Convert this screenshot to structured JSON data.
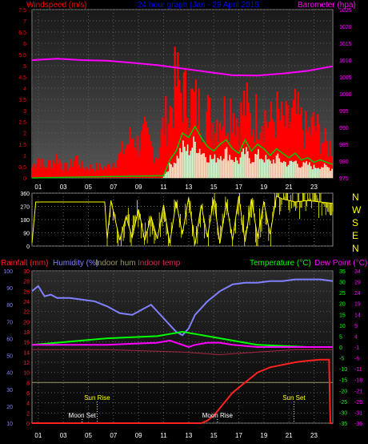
{
  "colors": {
    "background": "#000000",
    "grid": "#5a5a5a",
    "wind": "#ff0000",
    "windavg": "#00cc00",
    "windlight": "#d8ffd8",
    "baro": "#ff00ff",
    "dir": "#ffff00",
    "rain": "#ff2020",
    "hum": "#8080ff",
    "inhum": "#999966",
    "intemp": "#aa2244",
    "temp": "#00ff00",
    "dew": "#ff00ff",
    "title": "#0000ff",
    "sun": "#ffff00",
    "moon": "#ff8080",
    "white": "#ffffff"
  },
  "header": {
    "windspeed_label": "Windspeed (m/s)",
    "title": "24 hour graph (Jan - 29 April 2015",
    "barometer_label": "Barometer (hpa)"
  },
  "bottom_header": {
    "rainfall_label": "Rainfall (mm)",
    "humidity_label": "Humidity (%)",
    "indoor_hum_label": "Indoor hum",
    "indoor_temp_label": "Indoor temp",
    "temperature_label": "Temperature (°C)",
    "dewpoint_label": "Dew Point (°C)"
  },
  "compass": [
    "N",
    "W",
    "S",
    "E",
    "N"
  ],
  "time_labels": [
    "01",
    "03",
    "05",
    "07",
    "09",
    "11",
    "13",
    "15",
    "17",
    "19",
    "21",
    "23"
  ],
  "annotations": [
    {
      "text": "Sun Rise",
      "hour": 5.2,
      "color_key": "sun",
      "level": 1
    },
    {
      "text": "Moon Set",
      "hour": 4.0,
      "color_key": "white",
      "level": 2
    },
    {
      "text": "Moon Rise",
      "hour": 14.8,
      "color_key": "white",
      "level": 2
    },
    {
      "text": "Sun Set",
      "hour": 20.9,
      "color_key": "sun",
      "level": 1
    }
  ],
  "chart_data": [
    {
      "type": "bar",
      "panel": "wind",
      "xlim": [
        0,
        24
      ],
      "y_left": {
        "label": "Windspeed (m/s)",
        "ylim": [
          0,
          7.5
        ],
        "ticks": [
          0,
          0.5,
          1,
          1.5,
          2,
          2.5,
          3,
          3.5,
          4,
          4.5,
          5,
          5.5,
          6,
          6.5,
          7,
          7.5
        ]
      },
      "y_right": {
        "label": "Barometer (hpa)",
        "ylim": [
          975,
          1025
        ],
        "ticks": [
          975,
          980,
          985,
          990,
          995,
          1000,
          1005,
          1010,
          1015,
          1020,
          1025
        ]
      },
      "gust_points": [
        [
          0,
          0.5
        ],
        [
          0.5,
          1.0
        ],
        [
          1,
          0.5
        ],
        [
          2,
          1.0
        ],
        [
          2.5,
          0.5
        ],
        [
          3,
          0.5
        ],
        [
          3.5,
          1.0
        ],
        [
          4,
          0.5
        ],
        [
          5,
          0.5
        ],
        [
          6,
          0.5
        ],
        [
          7,
          1.0
        ],
        [
          7.5,
          1.5
        ],
        [
          8,
          2.0
        ],
        [
          8.5,
          1.5
        ],
        [
          9,
          2.0
        ],
        [
          9.5,
          1.5
        ],
        [
          10,
          1.0
        ],
        [
          10.5,
          2.5
        ],
        [
          11,
          3.0
        ],
        [
          11.5,
          4.5
        ],
        [
          12,
          4.0
        ],
        [
          12.5,
          3.5
        ],
        [
          13,
          3.5
        ],
        [
          13.5,
          3.0
        ],
        [
          14,
          3.0
        ],
        [
          14.5,
          2.5
        ],
        [
          15,
          3.0
        ],
        [
          15.5,
          3.0
        ],
        [
          16,
          3.5
        ],
        [
          16.5,
          2.5
        ],
        [
          17,
          3.5
        ],
        [
          17.5,
          2.5
        ],
        [
          18,
          3.0
        ],
        [
          18.5,
          3.0
        ],
        [
          19,
          2.5
        ],
        [
          19.5,
          3.0
        ],
        [
          20,
          2.5
        ],
        [
          20.5,
          2.5
        ],
        [
          21,
          3.0
        ],
        [
          21.5,
          2.5
        ],
        [
          22,
          2.0
        ],
        [
          22.5,
          2.5
        ],
        [
          23,
          2.0
        ],
        [
          23.5,
          1.5
        ],
        [
          24,
          1.5
        ]
      ],
      "avg_points": [
        [
          0,
          0
        ],
        [
          10.5,
          0.1
        ],
        [
          11,
          0.8
        ],
        [
          11.5,
          1.2
        ],
        [
          12,
          2.0
        ],
        [
          12.5,
          1.8
        ],
        [
          13,
          2.3
        ],
        [
          13.5,
          1.8
        ],
        [
          14,
          1.4
        ],
        [
          14.5,
          1.2
        ],
        [
          15,
          1.5
        ],
        [
          15.5,
          1.7
        ],
        [
          16,
          1.3
        ],
        [
          16.5,
          1.1
        ],
        [
          17,
          1.7
        ],
        [
          17.5,
          1.2
        ],
        [
          18,
          1.5
        ],
        [
          18.5,
          1.3
        ],
        [
          19,
          1.0
        ],
        [
          19.5,
          1.3
        ],
        [
          20,
          1.1
        ],
        [
          20.5,
          0.9
        ],
        [
          21,
          1.1
        ],
        [
          21.5,
          0.8
        ],
        [
          22,
          0.9
        ],
        [
          22.5,
          0.7
        ],
        [
          23,
          0.8
        ],
        [
          24,
          0.6
        ]
      ],
      "baro_points": [
        [
          0,
          1010
        ],
        [
          2,
          1010.4
        ],
        [
          4,
          1010
        ],
        [
          6,
          1009.8
        ],
        [
          8,
          1009.2
        ],
        [
          10,
          1008.5
        ],
        [
          12,
          1007.5
        ],
        [
          14,
          1006.5
        ],
        [
          16,
          1005.5
        ],
        [
          18,
          1005.4
        ],
        [
          20,
          1006.0
        ],
        [
          22,
          1006.8
        ],
        [
          24,
          1008.2
        ]
      ]
    },
    {
      "type": "line",
      "panel": "wind_direction",
      "xlim": [
        0,
        24
      ],
      "ylim": [
        0,
        360
      ],
      "ticks": [
        0,
        90,
        180,
        270,
        360
      ],
      "points": [
        [
          0,
          20
        ],
        [
          0.3,
          300
        ],
        [
          3,
          300
        ],
        [
          5.8,
          300
        ],
        [
          6.0,
          50
        ],
        [
          6.3,
          310
        ],
        [
          7,
          40
        ],
        [
          7.5,
          200
        ],
        [
          8,
          60
        ],
        [
          8.5,
          250
        ],
        [
          9,
          40
        ],
        [
          9.5,
          200
        ],
        [
          10,
          50
        ],
        [
          10.5,
          280
        ],
        [
          11,
          20
        ],
        [
          11.5,
          300
        ],
        [
          12,
          80
        ],
        [
          12.5,
          330
        ],
        [
          13,
          10
        ],
        [
          13.5,
          280
        ],
        [
          14,
          60
        ],
        [
          14.5,
          320
        ],
        [
          15,
          20
        ],
        [
          15.5,
          300
        ],
        [
          16,
          40
        ],
        [
          16.5,
          340
        ],
        [
          17,
          30
        ],
        [
          17.5,
          320
        ],
        [
          18,
          60
        ],
        [
          18.5,
          300
        ],
        [
          19,
          80
        ],
        [
          19.5,
          340
        ],
        [
          20,
          320
        ],
        [
          21,
          300
        ],
        [
          22,
          310
        ],
        [
          23,
          300
        ],
        [
          24,
          290
        ]
      ]
    },
    {
      "type": "line",
      "panel": "temperature_humidity",
      "xlim": [
        0,
        24
      ],
      "y_rain": {
        "label": "Rainfall (mm)",
        "ylim": [
          0,
          30
        ],
        "ticks": [
          0,
          2,
          4,
          6,
          8,
          10,
          12,
          14,
          16,
          18,
          20,
          22,
          24,
          26,
          28,
          30
        ]
      },
      "y_hum": {
        "label": "Humidity (%)",
        "ylim": [
          10,
          100
        ],
        "ticks": [
          10,
          20,
          30,
          40,
          50,
          60,
          70,
          80,
          90,
          100
        ]
      },
      "y_temp": {
        "label": "Temperature (°C)",
        "ylim": [
          -35,
          35
        ],
        "ticks": [
          -35,
          -30,
          -25,
          -20,
          -15,
          -10,
          -5,
          0,
          5,
          10,
          15,
          20,
          25,
          30,
          35
        ]
      },
      "y_dew": {
        "label": "Dew Point (°C)",
        "ylim": [
          -36,
          34
        ],
        "ticks": [
          -36,
          -31,
          -26,
          -21,
          -16,
          -11,
          -6,
          -1,
          4,
          9,
          14,
          19,
          24,
          29,
          34
        ]
      },
      "series": [
        {
          "name": "Humidity (%)",
          "color_key": "hum",
          "axis": "y_hum",
          "points": [
            [
              0,
              88
            ],
            [
              0.5,
              91
            ],
            [
              1,
              85
            ],
            [
              1.5,
              86
            ],
            [
              2,
              84
            ],
            [
              3,
              84
            ],
            [
              4,
              83
            ],
            [
              5,
              82
            ],
            [
              6,
              79
            ],
            [
              7,
              75
            ],
            [
              8,
              74
            ],
            [
              9,
              78
            ],
            [
              9.5,
              80
            ],
            [
              10,
              76
            ],
            [
              11,
              68
            ],
            [
              11.5,
              64
            ],
            [
              12,
              62
            ],
            [
              12.5,
              66
            ],
            [
              13,
              74
            ],
            [
              14,
              82
            ],
            [
              15,
              88
            ],
            [
              16,
              92
            ],
            [
              17,
              93
            ],
            [
              18,
              93
            ],
            [
              19,
              94
            ],
            [
              20,
              94
            ],
            [
              21,
              95
            ],
            [
              22,
              95
            ],
            [
              23,
              95
            ],
            [
              24,
              94
            ]
          ]
        },
        {
          "name": "Temperature (°C)",
          "color_key": "temp",
          "axis": "y_temp",
          "points": [
            [
              0,
              1
            ],
            [
              2,
              2
            ],
            [
              4,
              3
            ],
            [
              6,
              4
            ],
            [
              8,
              4.5
            ],
            [
              10,
              5
            ],
            [
              11,
              6
            ],
            [
              12,
              7
            ],
            [
              13,
              6
            ],
            [
              14,
              5
            ],
            [
              15,
              4
            ],
            [
              16,
              3
            ],
            [
              17,
              2
            ],
            [
              18,
              1
            ],
            [
              20,
              0.5
            ],
            [
              22,
              0
            ],
            [
              24,
              0
            ]
          ]
        },
        {
          "name": "Dew Point (°C)",
          "color_key": "dew",
          "axis": "y_dew",
          "points": [
            [
              0,
              0
            ],
            [
              3,
              0
            ],
            [
              6,
              0
            ],
            [
              8,
              0.5
            ],
            [
              10,
              1
            ],
            [
              11,
              2
            ],
            [
              12,
              0
            ],
            [
              12.5,
              -1
            ],
            [
              13,
              0
            ],
            [
              14,
              1
            ],
            [
              15,
              1
            ],
            [
              16,
              0
            ],
            [
              18,
              -1
            ],
            [
              20,
              -1
            ],
            [
              22,
              -1
            ],
            [
              24,
              -1
            ]
          ]
        },
        {
          "name": "Indoor hum",
          "color_key": "inhum",
          "axis": "y_rain",
          "points": [
            [
              0,
              8
            ],
            [
              6,
              8
            ],
            [
              12,
              8
            ],
            [
              18,
              8
            ],
            [
              24,
              8
            ]
          ]
        },
        {
          "name": "Indoor temp",
          "color_key": "intemp",
          "axis": "y_rain",
          "points": [
            [
              0,
              14.5
            ],
            [
              6,
              14.5
            ],
            [
              12,
              14
            ],
            [
              15,
              13.5
            ],
            [
              18,
              14
            ],
            [
              21,
              14.5
            ],
            [
              24,
              14.5
            ]
          ]
        },
        {
          "name": "Rainfall (mm)",
          "color_key": "rain",
          "axis": "y_rain",
          "points": [
            [
              0,
              0
            ],
            [
              13.5,
              0
            ],
            [
              14,
              0.5
            ],
            [
              14.5,
              1.5
            ],
            [
              15,
              3
            ],
            [
              16,
              6
            ],
            [
              17,
              8
            ],
            [
              18,
              10
            ],
            [
              19,
              11
            ],
            [
              20,
              11.5
            ],
            [
              21,
              12
            ],
            [
              22,
              12.3
            ],
            [
              23,
              12.5
            ],
            [
              23.7,
              12.5
            ],
            [
              23.8,
              0
            ],
            [
              24,
              0
            ]
          ]
        }
      ]
    }
  ]
}
